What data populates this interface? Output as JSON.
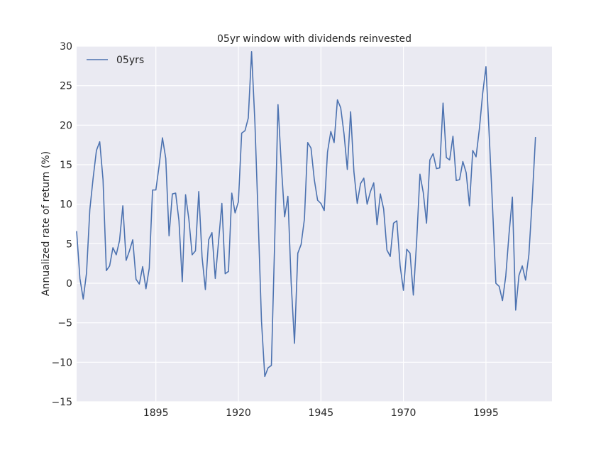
{
  "chart_data": {
    "type": "line",
    "title": "05yr window with dividends reinvested",
    "xlabel": "",
    "ylabel": "Annualized rate of return (%)",
    "xlim": [
      1871,
      2015
    ],
    "ylim": [
      -15,
      30
    ],
    "x_ticks": [
      1895,
      1920,
      1945,
      1970,
      1995
    ],
    "y_ticks": [
      -15,
      -10,
      -5,
      0,
      5,
      10,
      15,
      20,
      25,
      30
    ],
    "y_tick_labels": [
      "−15",
      "−10",
      "−5",
      "0",
      "5",
      "10",
      "15",
      "20",
      "25",
      "30"
    ],
    "grid": true,
    "legend_position": "top-left",
    "colors": {
      "background": "#eaeaf2",
      "grid": "#ffffff",
      "line": "#4c72b0"
    },
    "series": [
      {
        "name": "05yrs",
        "x": [
          1871,
          1872,
          1873,
          1874,
          1875,
          1876,
          1877,
          1878,
          1879,
          1880,
          1881,
          1882,
          1883,
          1884,
          1885,
          1886,
          1887,
          1888,
          1889,
          1890,
          1891,
          1892,
          1893,
          1894,
          1895,
          1896,
          1897,
          1898,
          1899,
          1900,
          1901,
          1902,
          1903,
          1904,
          1905,
          1906,
          1907,
          1908,
          1909,
          1910,
          1911,
          1912,
          1913,
          1914,
          1915,
          1916,
          1917,
          1918,
          1919,
          1920,
          1921,
          1922,
          1923,
          1924,
          1925,
          1926,
          1927,
          1928,
          1929,
          1930,
          1931,
          1932,
          1933,
          1934,
          1935,
          1936,
          1937,
          1938,
          1939,
          1940,
          1941,
          1942,
          1943,
          1944,
          1945,
          1946,
          1947,
          1948,
          1949,
          1950,
          1951,
          1952,
          1953,
          1954,
          1955,
          1956,
          1957,
          1958,
          1959,
          1960,
          1961,
          1962,
          1963,
          1964,
          1965,
          1966,
          1967,
          1968,
          1969,
          1970,
          1971,
          1972,
          1973,
          1974,
          1975,
          1976,
          1977,
          1978,
          1979,
          1980,
          1981,
          1982,
          1983,
          1984,
          1985,
          1986,
          1987,
          1988,
          1989,
          1990,
          1991,
          1992,
          1993,
          1994,
          1995,
          1996,
          1997,
          1998,
          1999,
          2000,
          2001,
          2002,
          2003,
          2004,
          2005,
          2006,
          2007,
          2008,
          2009,
          2010
        ],
        "values": [
          6.6,
          0.6,
          -2.0,
          1.3,
          9.3,
          13.3,
          16.8,
          17.9,
          13.1,
          1.6,
          2.2,
          4.5,
          3.6,
          5.4,
          9.8,
          2.9,
          4.1,
          5.5,
          0.5,
          -0.1,
          2.1,
          -0.7,
          1.9,
          11.8,
          11.8,
          14.9,
          18.4,
          15.8,
          6.0,
          11.3,
          11.4,
          7.9,
          0.2,
          11.2,
          8.1,
          3.6,
          4.1,
          11.6,
          3.3,
          -0.8,
          5.5,
          6.4,
          0.6,
          5.3,
          10.1,
          1.2,
          1.5,
          11.4,
          8.9,
          10.3,
          19.0,
          19.3,
          20.9,
          29.3,
          20.4,
          8.2,
          -4.8,
          -11.8,
          -10.7,
          -10.4,
          5.3,
          22.6,
          15.0,
          8.4,
          11.0,
          0.0,
          -7.6,
          3.8,
          4.9,
          8.1,
          17.8,
          17.1,
          13.1,
          10.5,
          10.1,
          9.2,
          16.6,
          19.2,
          17.8,
          23.2,
          22.2,
          18.9,
          14.4,
          21.7,
          14.1,
          10.1,
          12.6,
          13.3,
          10.0,
          11.6,
          12.7,
          7.4,
          11.3,
          9.4,
          4.2,
          3.4,
          7.6,
          7.9,
          2.2,
          -0.9,
          4.3,
          3.8,
          -1.5,
          5.3,
          13.8,
          11.5,
          7.6,
          15.6,
          16.4,
          14.5,
          14.6,
          22.8,
          15.9,
          15.6,
          18.6,
          13.0,
          13.1,
          15.4,
          14.0,
          9.8,
          16.8,
          16.0,
          19.5,
          24.0,
          27.4,
          18.6,
          9.6,
          0.0,
          -0.4,
          -2.2,
          0.9,
          6.3,
          10.9,
          -3.4,
          1.0,
          2.2,
          0.4,
          3.6,
          10.5,
          18.5
        ]
      }
    ]
  }
}
